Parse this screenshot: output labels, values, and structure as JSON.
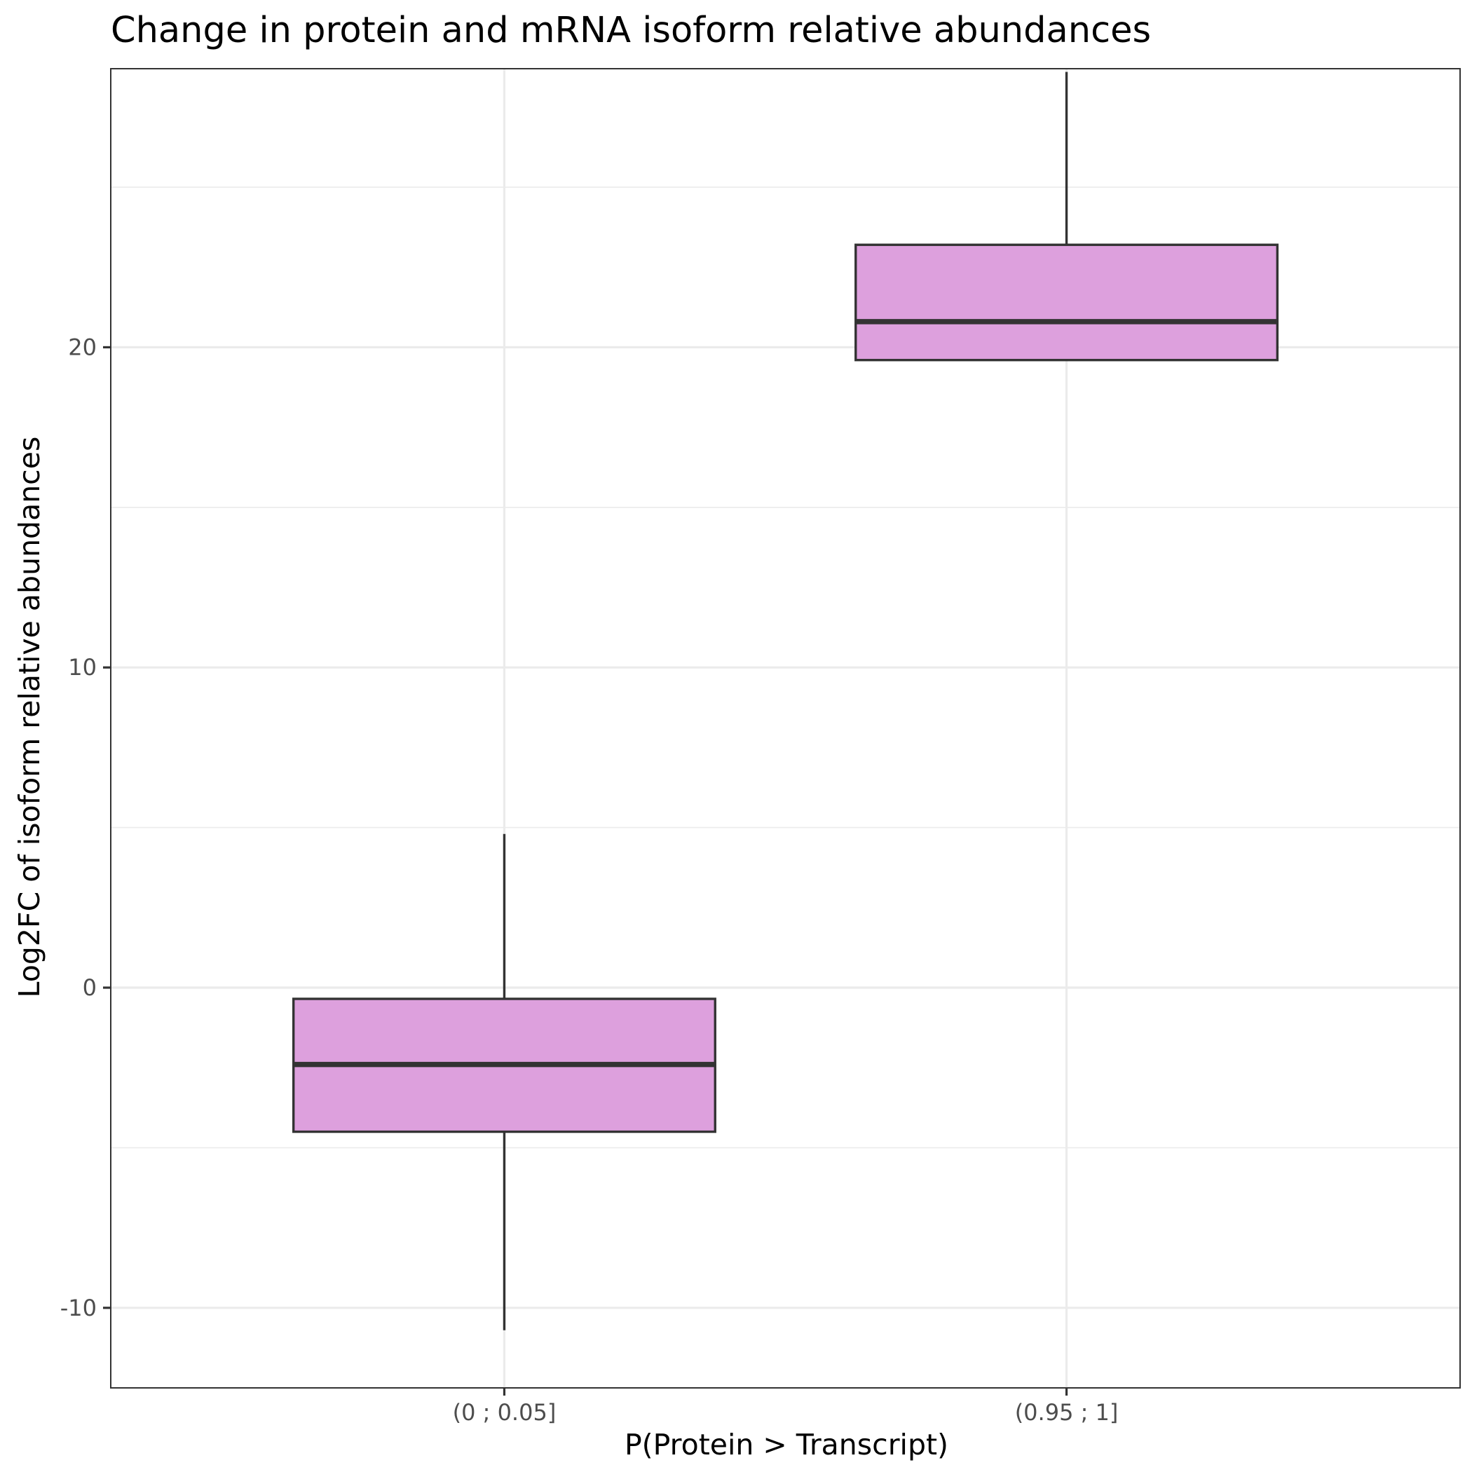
{
  "chart_data": {
    "type": "box",
    "title": "Change in protein and mRNA isoform relative abundances",
    "xlabel": "P(Protein > Transcript)",
    "ylabel": "Log2FC of isoform relative abundances",
    "categories": [
      "(0 ; 0.05]",
      "(0.95 ; 1]"
    ],
    "boxes": [
      {
        "category": "(0 ; 0.05]",
        "whisker_low": -10.7,
        "q1": -4.5,
        "median": -2.4,
        "q3": -0.35,
        "whisker_high": 4.8
      },
      {
        "category": "(0.95 ; 1]",
        "whisker_low": 19.6,
        "q1": 19.6,
        "median": 20.8,
        "q3": 23.2,
        "whisker_high": 28.6
      }
    ],
    "ylim": [
      -12.5,
      28.7
    ],
    "yticks": [
      -10,
      0,
      10,
      20
    ],
    "ytick_labels": [
      "-10",
      "0",
      "10",
      "20"
    ],
    "y_minor_grid": [
      -5,
      5,
      15,
      25
    ],
    "grid": true,
    "legend": "none",
    "box_fill": "#dda0dd",
    "box_stroke": "#333333"
  }
}
